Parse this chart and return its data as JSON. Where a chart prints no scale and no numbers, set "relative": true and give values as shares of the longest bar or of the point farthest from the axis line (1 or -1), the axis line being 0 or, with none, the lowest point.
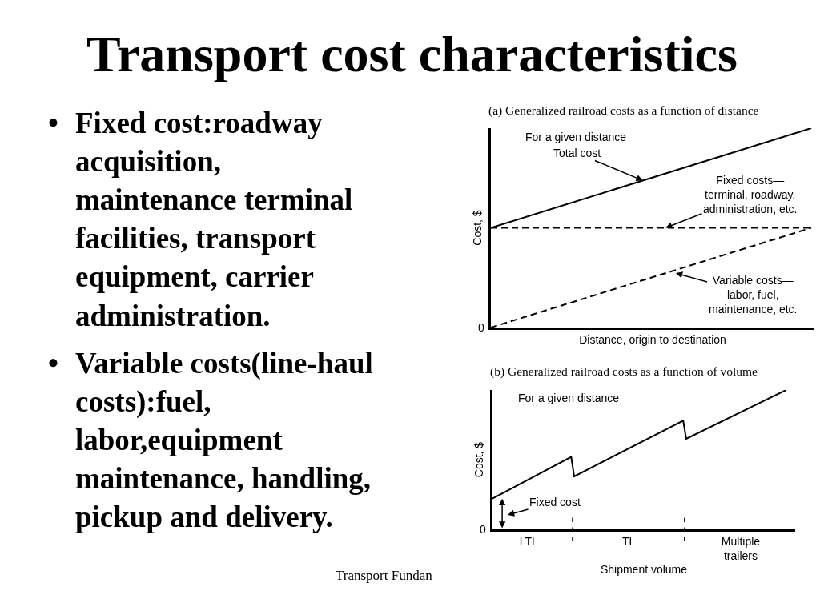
{
  "chart_data": [
    {
      "type": "other",
      "title": "Transport cost characteristics",
      "annotations": [
        "• Fixed cost:roadway\nacquisition,\nmaintenance terminal\nfacilities, transport\nequipment, carrier\nadministration.",
        "• Variable costs(line-haul\ncosts):fuel,\nlabor,equipment\nmaintenance, handling,\npickup and delivery.",
        "Transport Fundan"
      ]
    },
    {
      "type": "line",
      "title": "(a) Generalized railroad costs as a function of distance",
      "xlabel": "Distance, origin to destination",
      "ylabel": "Cost, $",
      "relative": true,
      "categories": [
        null,
        null
      ],
      "series": [
        {
          "name": "Total cost",
          "color": "#000000",
          "line_style": "solid",
          "values": [
            0.5,
            1
          ]
        },
        {
          "name": "Fixed costs—\nterminal, roadway,\nadministration, etc.",
          "color": "#000000",
          "line_style": "dashed",
          "values": [
            0.5,
            0.5
          ]
        },
        {
          "name": "Variable costs—\nlabor, fuel,\nmaintenance, etc.",
          "color": "#000000",
          "line_style": "dashed",
          "values": [
            0,
            0.5
          ]
        }
      ],
      "annotations": [
        "For a given distance",
        "0"
      ]
    },
    {
      "type": "line",
      "title": "(b) Generalized railroad costs as a function of volume",
      "xlabel": "Shipment volume",
      "ylabel": "Cost, $",
      "relative": true,
      "categories": [
        null,
        null,
        null,
        null,
        null,
        null,
        null,
        null,
        null,
        null,
        null,
        null,
        "LTL",
        null,
        null,
        null,
        null,
        null,
        null,
        null,
        null,
        null,
        null,
        null,
        null,
        null,
        null,
        null,
        null,
        null,
        null,
        null,
        null,
        null,
        null,
        null,
        null,
        null,
        null,
        null,
        null,
        null,
        null,
        null,
        null,
        "TL",
        null,
        null,
        null,
        null,
        null,
        null,
        null,
        null,
        null,
        null,
        null,
        null,
        null,
        null,
        null,
        null,
        null,
        null,
        null,
        null,
        null,
        null,
        null,
        null,
        null,
        null,
        null,
        null,
        null,
        null,
        null,
        null,
        null,
        null,
        null,
        null,
        "Multiple\ntrailers",
        null,
        null,
        null,
        null,
        null,
        null,
        null,
        null,
        null,
        null,
        null,
        null,
        null,
        null,
        null,
        null,
        null,
        null
      ],
      "series": [
        {
          "color": "#000000",
          "line_style": "solid",
          "values": [
            0.22,
            null,
            null,
            null,
            null,
            null,
            null,
            null,
            null,
            null,
            null,
            null,
            null,
            null,
            null,
            null,
            null,
            null,
            null,
            null,
            null,
            null,
            null,
            null,
            null,
            null,
            0.52,
            0.38,
            null,
            null,
            null,
            null,
            null,
            null,
            null,
            null,
            null,
            null,
            null,
            null,
            null,
            null,
            null,
            null,
            null,
            null,
            null,
            null,
            null,
            null,
            null,
            null,
            null,
            null,
            null,
            null,
            null,
            null,
            null,
            null,
            null,
            null,
            null,
            0.78,
            0.65,
            null,
            null,
            null,
            null,
            null,
            null,
            null,
            null,
            null,
            null,
            null,
            null,
            null,
            null,
            null,
            null,
            null,
            null,
            null,
            null,
            null,
            null,
            null,
            null,
            null,
            null,
            null,
            null,
            null,
            null,
            null,
            null,
            1,
            null,
            null,
            null
          ]
        }
      ],
      "annotations": [
        "For a given distance",
        "Fixed cost",
        "0"
      ]
    }
  ]
}
